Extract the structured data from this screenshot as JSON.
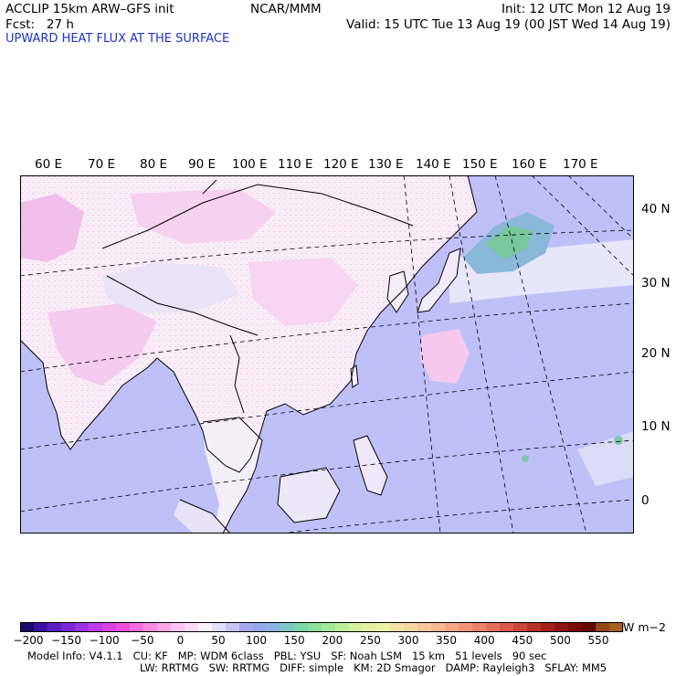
{
  "header": {
    "model_line": "ACCLIP 15km ARW–GFS init",
    "fcst_line": "Fcst:   27 h",
    "title": "UPWARD HEAT FLUX AT THE SURFACE",
    "center": "NCAR/MMM",
    "init": "Init: 12 UTC Mon 12 Aug 19",
    "valid": "Valid: 15 UTC Tue 13 Aug 19 (00 JST Wed 14 Aug 19)"
  },
  "map": {
    "longitude_labels": [
      "60 E",
      "70 E",
      "80 E",
      "90 E",
      "100 E",
      "110 E",
      "120 E",
      "130 E",
      "140 E",
      "150 E",
      "160 E",
      "170 E"
    ],
    "latitude_labels": [
      "40 N",
      "30 N",
      "20 N",
      "10 N",
      "0"
    ],
    "colors": {
      "land_base": "#faf4fa",
      "land_pink": "#f4c8ee",
      "ocean": "#c0c0f8",
      "green": "#78c89c",
      "border": "#000000"
    }
  },
  "colorbar": {
    "ticks": [
      "−200",
      "−150",
      "−100",
      "−50",
      "0",
      "50",
      "100",
      "150",
      "200",
      "250",
      "300",
      "350",
      "400",
      "450",
      "500",
      "550"
    ],
    "unit": "W m−2",
    "colors": [
      "#1a0a6e",
      "#3a12a0",
      "#5a1ec4",
      "#7a28d8",
      "#9c32e4",
      "#bc3ce8",
      "#d844e4",
      "#ee50da",
      "#f66cde",
      "#f88ae4",
      "#faa8ea",
      "#fcc4f0",
      "#fcdaf6",
      "#fef0fc",
      "#e0e0fc",
      "#c4c4f6",
      "#a8a8ee",
      "#96a8ea",
      "#8ab6e4",
      "#7ec8c8",
      "#7ed6aa",
      "#8ae09a",
      "#a2e898",
      "#bcee9a",
      "#d2f29c",
      "#e4f2a0",
      "#eef0a4",
      "#f4e4a4",
      "#f6d6a0",
      "#f8c89a",
      "#f8b890",
      "#f6a684",
      "#f29478",
      "#ec826c",
      "#e46e5e",
      "#d85a4c",
      "#c8463a",
      "#b43228",
      "#a0221a",
      "#8c1410",
      "#780c08",
      "#640602",
      "#904818",
      "#a8601c"
    ]
  },
  "footer": {
    "line1": [
      "Model Info: V4.1.1",
      "CU: KF",
      "MP: WDM 6class",
      "PBL: YSU",
      "SF: Noah LSM",
      "15 km",
      "51 levels",
      "90 sec"
    ],
    "line2": [
      "LW: RRTMG",
      "SW: RRTMG",
      "DIFF: simple",
      "KM: 2D Smagor",
      "DAMP: Rayleigh3",
      "SFLAY: MM5"
    ]
  }
}
